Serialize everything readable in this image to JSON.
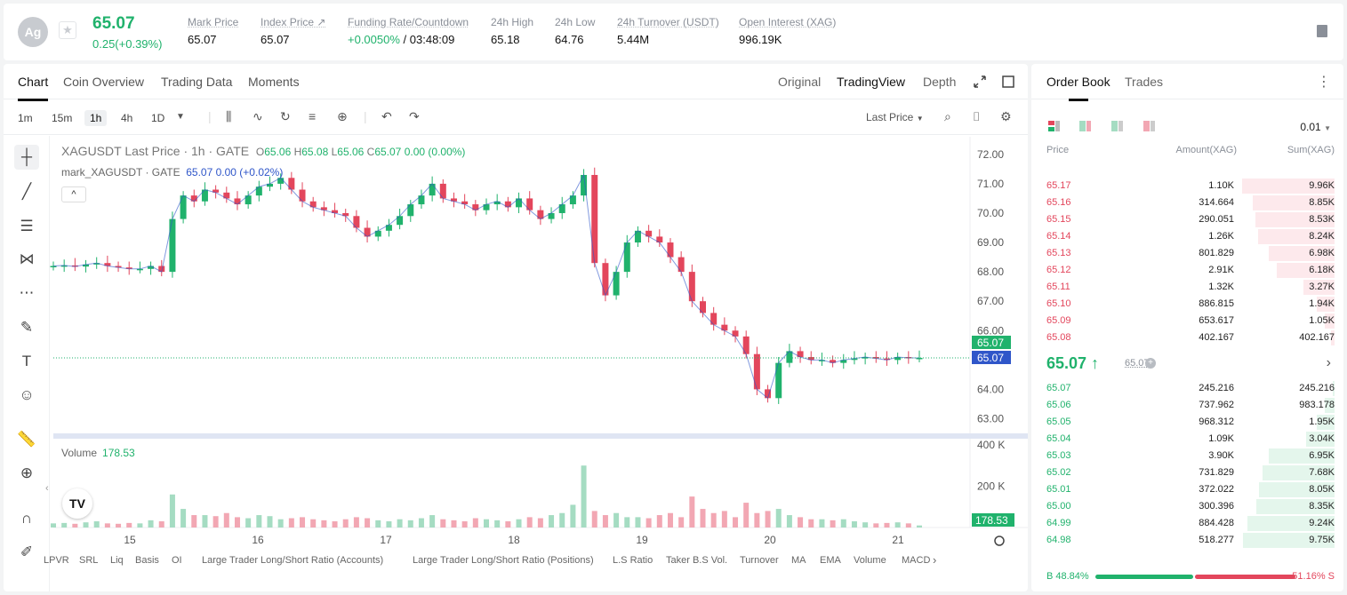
{
  "header": {
    "coin_abbr": "Ag",
    "star_icon": "star-icon",
    "last_price": "65.07",
    "change": "0.25(+0.39%)",
    "stats": [
      {
        "label": "Mark Price",
        "value": "65.07"
      },
      {
        "label": "Index Price ↗",
        "value": "65.07"
      },
      {
        "label": "Funding Rate/Countdown",
        "value_green": "+0.0050%",
        "value": "/ 03:48:09"
      },
      {
        "label": "24h High",
        "value": "65.18"
      },
      {
        "label": "24h Low",
        "value": "64.76"
      },
      {
        "label": "24h Turnover (USDT)",
        "value": "5.44M"
      },
      {
        "label": "Open Interest (XAG)",
        "value": "996.19K"
      }
    ]
  },
  "chart_tabs": [
    "Chart",
    "Coin Overview",
    "Trading Data",
    "Moments"
  ],
  "view_tabs": [
    "Original",
    "TradingView",
    "Depth"
  ],
  "timeframes": [
    "1m",
    "15m",
    "1h",
    "4h",
    "1D"
  ],
  "active_timeframe": "1h",
  "price_source_label": "Last Price",
  "legend": {
    "symbol": "XAGUSDT Last Price · 1h · GATE",
    "o": "65.06",
    "h": "65.08",
    "l": "65.06",
    "c": "65.07",
    "chg": "0.00 (0.00%)",
    "mark_line_label": "mark_XAGUSDT · GATE",
    "mark_line_values": "65.07  0.00  (+0.02%)",
    "collapse": "^"
  },
  "volume_legend": {
    "label": "Volume",
    "value": "178.53"
  },
  "tv_logo": "TV",
  "indicators": [
    "LPVR",
    "SRL",
    "Liq",
    "Basis",
    "OI",
    "Large Trader Long/Short Ratio (Accounts)",
    "Large Trader Long/Short Ratio (Positions)",
    "L.S Ratio",
    "Taker B.S Vol.",
    "Turnover",
    "MA",
    "EMA",
    "Volume",
    "MACD"
  ],
  "chart_data": {
    "type": "candlestick",
    "title": "",
    "price_axis_ticks": [
      "72.00",
      "71.00",
      "70.00",
      "69.00",
      "68.00",
      "67.00",
      "66.00",
      "65.00",
      "64.00",
      "63.00"
    ],
    "volume_axis_ticks": [
      "400 K",
      "200 K"
    ],
    "date_ticks": [
      "15",
      "16",
      "17",
      "18",
      "19",
      "20",
      "21"
    ],
    "price_range": [
      62.5,
      72.6
    ],
    "current_price_label": "65.07",
    "mark_price_label": "65.07",
    "current_volume_label": "178.53",
    "volume_max": 430000,
    "close_path": [
      68.2,
      68.22,
      68.18,
      68.25,
      68.3,
      68.2,
      68.15,
      68.1,
      68.1,
      68.2,
      68.0,
      69.8,
      70.6,
      70.4,
      70.8,
      70.7,
      70.5,
      70.3,
      70.6,
      70.9,
      71.0,
      71.2,
      70.8,
      70.4,
      70.2,
      70.1,
      70.0,
      69.9,
      69.5,
      69.2,
      69.4,
      69.6,
      69.9,
      70.3,
      70.6,
      71.0,
      70.5,
      70.4,
      70.3,
      70.1,
      70.3,
      70.4,
      70.2,
      70.5,
      70.1,
      69.8,
      70.0,
      70.3,
      70.6,
      71.3,
      68.3,
      67.2,
      68.0,
      69.0,
      69.4,
      69.2,
      69.0,
      68.5,
      68.0,
      67.0,
      66.6,
      66.2,
      66.0,
      65.8,
      65.2,
      64.0,
      63.7,
      64.9,
      65.3,
      65.1,
      65.0,
      65.0,
      64.9,
      65.0,
      65.05,
      65.1,
      65.05,
      65.0,
      65.1,
      65.07,
      65.07
    ],
    "volumes_k": [
      20,
      22,
      18,
      25,
      30,
      20,
      18,
      22,
      20,
      35,
      30,
      160,
      90,
      60,
      60,
      55,
      70,
      50,
      45,
      60,
      55,
      40,
      45,
      50,
      40,
      35,
      30,
      40,
      50,
      45,
      35,
      30,
      40,
      35,
      45,
      60,
      40,
      35,
      30,
      45,
      40,
      35,
      30,
      40,
      50,
      45,
      60,
      70,
      110,
      300,
      80,
      60,
      70,
      50,
      50,
      45,
      60,
      70,
      50,
      150,
      90,
      70,
      80,
      50,
      120,
      70,
      80,
      90,
      60,
      50,
      40,
      40,
      35,
      40,
      30,
      25,
      20,
      22,
      25,
      20,
      10
    ]
  },
  "orderbook": {
    "tabs": [
      "Order Book",
      "Trades"
    ],
    "precision": "0.01",
    "headers": [
      "Price",
      "Amount(XAG)",
      "Sum(XAG)"
    ],
    "asks": [
      {
        "price": "65.17",
        "amount": "1.10K",
        "sum": "9.96K",
        "depth": 0.99
      },
      {
        "price": "65.16",
        "amount": "314.664",
        "sum": "8.85K",
        "depth": 0.88
      },
      {
        "price": "65.15",
        "amount": "290.051",
        "sum": "8.53K",
        "depth": 0.85
      },
      {
        "price": "65.14",
        "amount": "1.26K",
        "sum": "8.24K",
        "depth": 0.82
      },
      {
        "price": "65.13",
        "amount": "801.829",
        "sum": "6.98K",
        "depth": 0.7
      },
      {
        "price": "65.12",
        "amount": "2.91K",
        "sum": "6.18K",
        "depth": 0.62
      },
      {
        "price": "65.11",
        "amount": "1.32K",
        "sum": "3.27K",
        "depth": 0.33
      },
      {
        "price": "65.10",
        "amount": "886.815",
        "sum": "1.94K",
        "depth": 0.19
      },
      {
        "price": "65.09",
        "amount": "653.617",
        "sum": "1.05K",
        "depth": 0.1
      },
      {
        "price": "65.08",
        "amount": "402.167",
        "sum": "402.167",
        "depth": 0.04
      }
    ],
    "mid_price": "65.07 ↑",
    "mid_mark": "65.07",
    "bids": [
      {
        "price": "65.07",
        "amount": "245.216",
        "sum": "245.216",
        "depth": 0.02
      },
      {
        "price": "65.06",
        "amount": "737.962",
        "sum": "983.178",
        "depth": 0.1
      },
      {
        "price": "65.05",
        "amount": "968.312",
        "sum": "1.95K",
        "depth": 0.19
      },
      {
        "price": "65.04",
        "amount": "1.09K",
        "sum": "3.04K",
        "depth": 0.3
      },
      {
        "price": "65.03",
        "amount": "3.90K",
        "sum": "6.95K",
        "depth": 0.7
      },
      {
        "price": "65.02",
        "amount": "731.829",
        "sum": "7.68K",
        "depth": 0.77
      },
      {
        "price": "65.01",
        "amount": "372.022",
        "sum": "8.05K",
        "depth": 0.81
      },
      {
        "price": "65.00",
        "amount": "300.396",
        "sum": "8.35K",
        "depth": 0.84
      },
      {
        "price": "64.99",
        "amount": "884.428",
        "sum": "9.24K",
        "depth": 0.93
      },
      {
        "price": "64.98",
        "amount": "518.277",
        "sum": "9.75K",
        "depth": 0.98
      }
    ],
    "ratio": {
      "buy_label": "B 48.84%",
      "sell_label": "51.16% S",
      "buy": 0.4884
    }
  },
  "colors": {
    "up": "#20b26c",
    "down": "#e3465c",
    "up_vol": "#a5dcc2",
    "down_vol": "#f2a7b3"
  }
}
